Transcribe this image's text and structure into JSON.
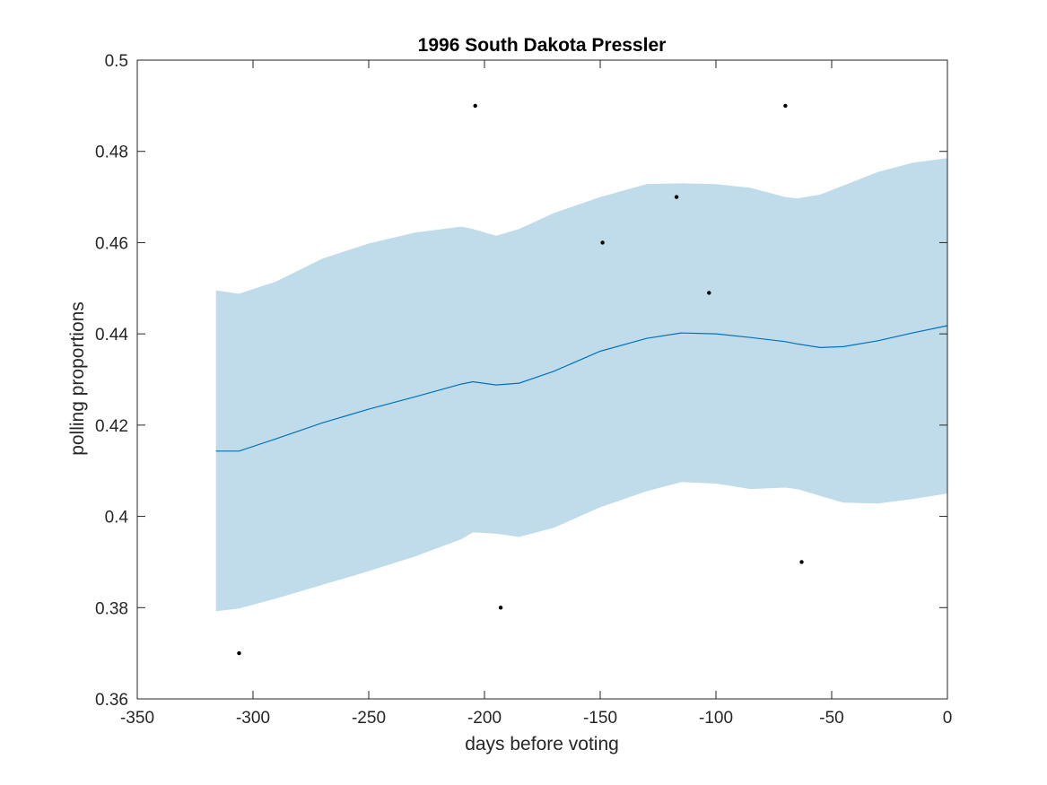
{
  "chart_data": {
    "type": "line",
    "title": "1996 South Dakota Pressler",
    "xlabel": "days before voting",
    "ylabel": "polling proportions",
    "xlim": [
      -350,
      0
    ],
    "ylim": [
      0.36,
      0.5
    ],
    "xticks": [
      -350,
      -300,
      -250,
      -200,
      -150,
      -100,
      -50,
      0
    ],
    "xtick_labels": [
      "-350",
      "-300",
      "-250",
      "-200",
      "-150",
      "-100",
      "-50",
      "0"
    ],
    "yticks": [
      0.36,
      0.38,
      0.4,
      0.42,
      0.44,
      0.46,
      0.48,
      0.5
    ],
    "ytick_labels": [
      "0.36",
      "0.38",
      "0.4",
      "0.42",
      "0.44",
      "0.46",
      "0.48",
      "0.5"
    ],
    "grid": false,
    "colors": {
      "band": "#c0dcea",
      "line": "#0072bd",
      "points": "#000000",
      "axes": "#262626"
    },
    "band": {
      "x": [
        -316,
        -306,
        -290,
        -270,
        -250,
        -230,
        -210,
        -205,
        -195,
        -185,
        -170,
        -150,
        -130,
        -115,
        -100,
        -85,
        -70,
        -65,
        -55,
        -45,
        -30,
        -15,
        0
      ],
      "upper": [
        0.4495,
        0.4488,
        0.4515,
        0.4565,
        0.4598,
        0.4622,
        0.4635,
        0.463,
        0.4615,
        0.463,
        0.4665,
        0.47,
        0.4728,
        0.473,
        0.4728,
        0.472,
        0.47,
        0.4697,
        0.4705,
        0.4725,
        0.4755,
        0.4775,
        0.4785
      ],
      "lower": [
        0.3792,
        0.3798,
        0.382,
        0.385,
        0.388,
        0.3912,
        0.395,
        0.3965,
        0.3962,
        0.3955,
        0.3975,
        0.402,
        0.4055,
        0.4075,
        0.4072,
        0.406,
        0.4063,
        0.406,
        0.4045,
        0.403,
        0.4028,
        0.4038,
        0.405
      ]
    },
    "series": [
      {
        "x": [
          -316,
          -306,
          -290,
          -270,
          -250,
          -230,
          -210,
          -205,
          -195,
          -185,
          -170,
          -150,
          -130,
          -115,
          -100,
          -85,
          -70,
          -65,
          -55,
          -45,
          -30,
          -15,
          0
        ],
        "values": [
          0.4143,
          0.4143,
          0.417,
          0.4205,
          0.4235,
          0.4262,
          0.429,
          0.4295,
          0.4288,
          0.4292,
          0.4318,
          0.4362,
          0.439,
          0.4402,
          0.44,
          0.4392,
          0.4383,
          0.4378,
          0.437,
          0.4372,
          0.4385,
          0.4402,
          0.4418
        ]
      }
    ],
    "points": {
      "x": [
        -306,
        -204,
        -193,
        -149,
        -117,
        -103,
        -70,
        -63
      ],
      "y": [
        0.37,
        0.49,
        0.38,
        0.46,
        0.47,
        0.449,
        0.49,
        0.39
      ]
    }
  }
}
